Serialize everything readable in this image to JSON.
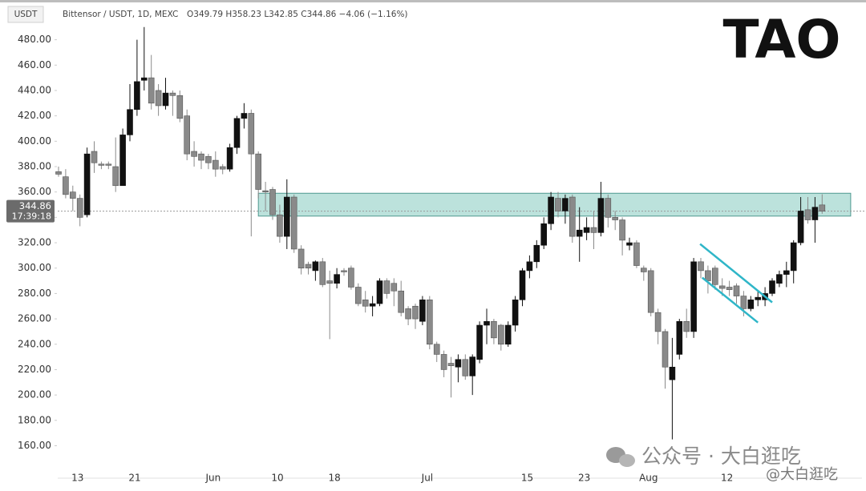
{
  "chart_data": {
    "type": "candlestick",
    "symbol_label": "USDT",
    "title": "Bittensor / USDT, 1D, MEXC",
    "quote": "O349.79 H358.23 L342.85 C344.86 −4.06 (−1.16%)",
    "badge": "TAO",
    "watermark": "公众号 · 大白逛吃",
    "watermark_handle": "@大白逛吃",
    "last_price": 344.86,
    "countdown": "17:39:18",
    "up_color": "#111111",
    "down_color": "#8a8a8a",
    "ylim": [
      142,
      505
    ],
    "yticks": [
      {
        "value": 160,
        "label": "160.00"
      },
      {
        "value": 180,
        "label": "180.00"
      },
      {
        "value": 200,
        "label": "200.00"
      },
      {
        "value": 220,
        "label": "220.00"
      },
      {
        "value": 240,
        "label": "240.00"
      },
      {
        "value": 260,
        "label": "260.00"
      },
      {
        "value": 280,
        "label": "280.00"
      },
      {
        "value": 300,
        "label": "300.00"
      },
      {
        "value": 320,
        "label": "320.00"
      },
      {
        "value": 340,
        "label": "340.00"
      },
      {
        "value": 360,
        "label": "360.00"
      },
      {
        "value": 380,
        "label": "380.00"
      },
      {
        "value": 400,
        "label": "400.00"
      },
      {
        "value": 420,
        "label": "420.00"
      },
      {
        "value": 440,
        "label": "440.00"
      },
      {
        "value": 460,
        "label": "460.00"
      },
      {
        "value": 480,
        "label": "480.00"
      }
    ],
    "zone": {
      "low": 341,
      "high": 359,
      "from": 28,
      "to": 111,
      "color": "#8fcfc4"
    },
    "trendlines": [
      {
        "x": [
          89.9,
          100
        ],
        "y": [
          319,
          273
        ],
        "color": "#2fb6c8"
      },
      {
        "x": [
          90.2,
          98
        ],
        "y": [
          292.5,
          257.1
        ],
        "color": "#2fb6c8"
      }
    ],
    "categories": [
      null,
      null,
      "13",
      null,
      null,
      null,
      null,
      null,
      null,
      null,
      "21",
      null,
      null,
      null,
      null,
      null,
      null,
      null,
      null,
      null,
      null,
      "Jun",
      null,
      null,
      null,
      null,
      null,
      null,
      null,
      null,
      "10",
      null,
      null,
      null,
      null,
      null,
      null,
      null,
      "18",
      null,
      null,
      null,
      null,
      null,
      null,
      null,
      null,
      null,
      null,
      null,
      null,
      "Jul",
      null,
      null,
      null,
      null,
      null,
      null,
      null,
      null,
      null,
      null,
      null,
      null,
      null,
      "15",
      null,
      null,
      null,
      null,
      null,
      null,
      null,
      "23",
      null,
      null,
      null,
      null,
      null,
      null,
      null,
      null,
      "Aug",
      null,
      null,
      null,
      null,
      null,
      null,
      null,
      null,
      null,
      null,
      "12",
      null,
      null,
      null,
      null,
      null,
      null,
      null,
      null,
      null,
      null,
      null,
      null,
      null,
      null
    ],
    "ohlc": [
      [
        376,
        380,
        372,
        374
      ],
      [
        372,
        378,
        355,
        358
      ],
      [
        360,
        365,
        345,
        355
      ],
      [
        355,
        358,
        333,
        340
      ],
      [
        342,
        395,
        340,
        390
      ],
      [
        392,
        400,
        375,
        383
      ],
      [
        382,
        384,
        378,
        381
      ],
      [
        382,
        384,
        378,
        381
      ],
      [
        380,
        403,
        360,
        365
      ],
      [
        365,
        410,
        365,
        405
      ],
      [
        405,
        445,
        400,
        425
      ],
      [
        425,
        480,
        420,
        447
      ],
      [
        448,
        490,
        440,
        450
      ],
      [
        450,
        468,
        425,
        430
      ],
      [
        440,
        445,
        420,
        428
      ],
      [
        428,
        450,
        425,
        438
      ],
      [
        438,
        440,
        420,
        436
      ],
      [
        436,
        440,
        415,
        418
      ],
      [
        420,
        425,
        385,
        390
      ],
      [
        392,
        400,
        380,
        388
      ],
      [
        390,
        392,
        378,
        385
      ],
      [
        388,
        390,
        378,
        383
      ],
      [
        385,
        392,
        372,
        378
      ],
      [
        380,
        382,
        374,
        378
      ],
      [
        378,
        398,
        376,
        395
      ],
      [
        395,
        420,
        390,
        418
      ],
      [
        418,
        430,
        410,
        422
      ],
      [
        422,
        425,
        325,
        390
      ],
      [
        390,
        392,
        355,
        362
      ],
      [
        361,
        368,
        345,
        360
      ],
      [
        362,
        364,
        338,
        342
      ],
      [
        342,
        350,
        320,
        325
      ],
      [
        325,
        370,
        315,
        356
      ],
      [
        356,
        358,
        312,
        315
      ],
      [
        315,
        318,
        295,
        300
      ],
      [
        303,
        305,
        295,
        300
      ],
      [
        298,
        306,
        290,
        305
      ],
      [
        305,
        308,
        285,
        287
      ],
      [
        290,
        298,
        244,
        288
      ],
      [
        288,
        300,
        284,
        295
      ],
      [
        298,
        300,
        294,
        297
      ],
      [
        300,
        302,
        283,
        285
      ],
      [
        285,
        288,
        270,
        272
      ],
      [
        275,
        282,
        265,
        270
      ],
      [
        270,
        278,
        262,
        272
      ],
      [
        272,
        292,
        270,
        290
      ],
      [
        290,
        292,
        276,
        280
      ],
      [
        288,
        292,
        270,
        282
      ],
      [
        282,
        290,
        262,
        265
      ],
      [
        268,
        270,
        255,
        260
      ],
      [
        270,
        272,
        252,
        260
      ],
      [
        258,
        278,
        255,
        275
      ],
      [
        275,
        278,
        236,
        240
      ],
      [
        240,
        242,
        226,
        232
      ],
      [
        232,
        235,
        214,
        220
      ],
      [
        225,
        230,
        198,
        223
      ],
      [
        222,
        232,
        210,
        228
      ],
      [
        228,
        232,
        212,
        215
      ],
      [
        215,
        232,
        200,
        230
      ],
      [
        228,
        258,
        225,
        255
      ],
      [
        255,
        268,
        240,
        258
      ],
      [
        258,
        260,
        240,
        245
      ],
      [
        255,
        256,
        235,
        240
      ],
      [
        240,
        258,
        238,
        255
      ],
      [
        255,
        278,
        250,
        275
      ],
      [
        275,
        300,
        270,
        298
      ],
      [
        298,
        310,
        292,
        305
      ],
      [
        305,
        322,
        300,
        318
      ],
      [
        318,
        340,
        315,
        335
      ],
      [
        335,
        360,
        330,
        356
      ],
      [
        355,
        360,
        340,
        345
      ],
      [
        345,
        358,
        335,
        355
      ],
      [
        356,
        358,
        320,
        325
      ],
      [
        325,
        348,
        305,
        330
      ],
      [
        328,
        340,
        322,
        332
      ],
      [
        332,
        345,
        315,
        328
      ],
      [
        328,
        368,
        325,
        355
      ],
      [
        355,
        358,
        332,
        340
      ],
      [
        340,
        345,
        330,
        338
      ],
      [
        338,
        340,
        310,
        322
      ],
      [
        318,
        324,
        314,
        320
      ],
      [
        320,
        322,
        300,
        302
      ],
      [
        300,
        302,
        290,
        297
      ],
      [
        298,
        300,
        262,
        265
      ],
      [
        265,
        268,
        240,
        250
      ],
      [
        250,
        252,
        205,
        222
      ],
      [
        212,
        245,
        165,
        222
      ],
      [
        232,
        260,
        228,
        258
      ],
      [
        258,
        268,
        245,
        250
      ],
      [
        250,
        308,
        245,
        305
      ],
      [
        305,
        308,
        292,
        298
      ],
      [
        298,
        302,
        280,
        290
      ],
      [
        300,
        302,
        283,
        287
      ],
      [
        286,
        292,
        278,
        284
      ],
      [
        285,
        290,
        278,
        283
      ],
      [
        286,
        288,
        272,
        278
      ],
      [
        278,
        282,
        262,
        268
      ],
      [
        268,
        278,
        266,
        275
      ],
      [
        275,
        282,
        270,
        277
      ],
      [
        275,
        285,
        270,
        280
      ],
      [
        280,
        292,
        278,
        290
      ],
      [
        288,
        298,
        285,
        295
      ],
      [
        295,
        305,
        285,
        298
      ],
      [
        298,
        322,
        288,
        320
      ],
      [
        320,
        356,
        318,
        345
      ],
      [
        346,
        356,
        335,
        338
      ],
      [
        338,
        356,
        320,
        348
      ],
      [
        349.79,
        358.23,
        342.85,
        344.86
      ]
    ]
  }
}
